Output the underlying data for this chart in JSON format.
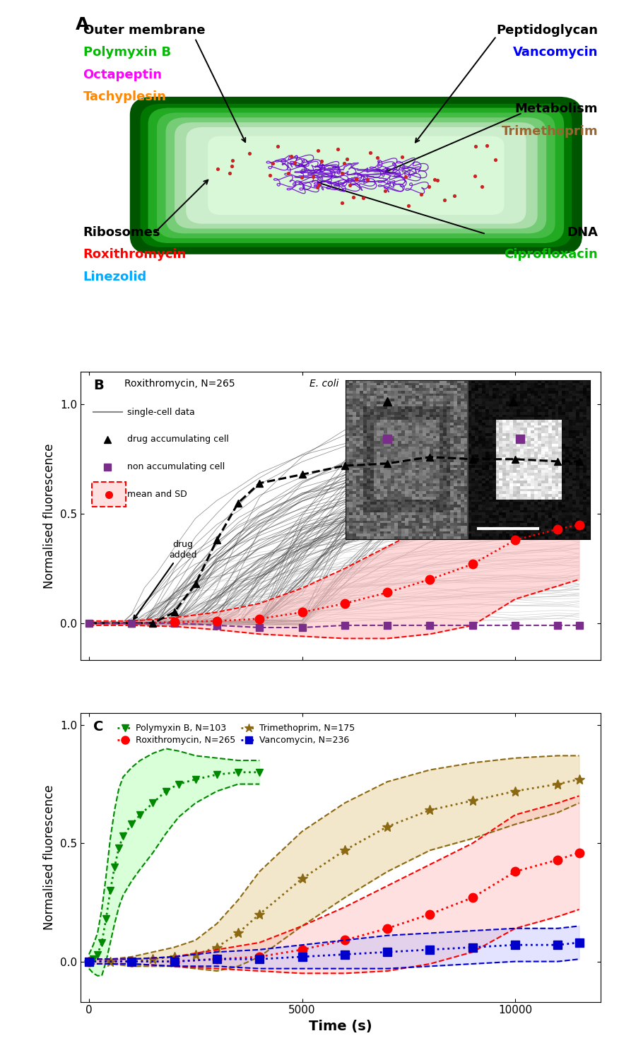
{
  "panel_A": {
    "labels_left": [
      {
        "text": "Outer membrane",
        "color": "#000000",
        "fontsize": 13,
        "bold": true
      },
      {
        "text": "Polymyxin B",
        "color": "#00bb00",
        "fontsize": 13,
        "bold": true
      },
      {
        "text": "Octapeptin",
        "color": "#ff00ff",
        "fontsize": 13,
        "bold": true
      },
      {
        "text": "Tachyplesin",
        "color": "#ff8800",
        "fontsize": 13,
        "bold": true
      }
    ],
    "labels_right": [
      {
        "text": "Peptidoglycan",
        "color": "#000000",
        "fontsize": 13,
        "bold": true
      },
      {
        "text": "Vancomycin",
        "color": "#0000ff",
        "fontsize": 13,
        "bold": true
      },
      {
        "text": "Metabolism",
        "color": "#000000",
        "fontsize": 13,
        "bold": true
      },
      {
        "text": "Trimethoprim",
        "color": "#996633",
        "fontsize": 13,
        "bold": true
      }
    ],
    "labels_bot_left": [
      {
        "text": "Ribosomes",
        "color": "#000000",
        "fontsize": 13,
        "bold": true
      },
      {
        "text": "Roxithromycin",
        "color": "#ff0000",
        "fontsize": 13,
        "bold": true
      },
      {
        "text": "Linezolid",
        "color": "#00aaff",
        "fontsize": 13,
        "bold": true
      }
    ],
    "labels_bot_right": [
      {
        "text": "DNA",
        "color": "#000000",
        "fontsize": 13,
        "bold": true
      },
      {
        "text": "Ciprofloxacin",
        "color": "#00bb00",
        "fontsize": 13,
        "bold": true
      }
    ],
    "membrane_colors": [
      "#005500",
      "#007700",
      "#22aa22",
      "#55cc55",
      "#88ee88",
      "#bbffbb",
      "#ddffd0"
    ],
    "cytoplasm_color": "#e8ffe8",
    "dna_color": "#6600cc",
    "ribosome_color": "#cc2222"
  },
  "panel_B": {
    "xlim": [
      -200,
      12000
    ],
    "ylim": [
      -0.17,
      1.15
    ],
    "yticks": [
      0.0,
      0.5,
      1.0
    ],
    "xticks": [
      0,
      5000,
      10000
    ],
    "title_normal": "Roxithromycin, N=265 ",
    "title_italic": "E. coli",
    "legend_line_color": "#888888",
    "acc_color": "#000000",
    "nonacc_color": "#7b2d8b",
    "mean_color": "#ff0000"
  },
  "panel_C": {
    "xlim": [
      -200,
      12000
    ],
    "ylim": [
      -0.17,
      1.05
    ],
    "yticks": [
      0.0,
      0.5,
      1.0
    ],
    "xticks": [
      0,
      5000,
      10000
    ],
    "xlabel": "Time (s)",
    "pmb_color": "#008800",
    "tri_color": "#8B6914",
    "rox_color": "#ff0000",
    "van_color": "#0000cc"
  },
  "ylabel": "Normalised fluorescence"
}
